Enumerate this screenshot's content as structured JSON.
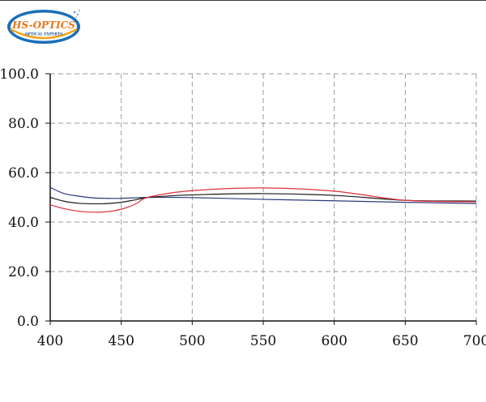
{
  "logo": {
    "brand": "HS-OPTICS",
    "tagline": "OPTICAL EXPERTS"
  },
  "chart_data": {
    "type": "line",
    "xlim": [
      400,
      700
    ],
    "ylim": [
      0,
      100
    ],
    "x_ticks": [
      "400",
      "450",
      "500",
      "550",
      "600",
      "650",
      "700"
    ],
    "y_ticks": [
      "0.0",
      "20.0",
      "40.0",
      "60.0",
      "80.0",
      "100.0"
    ],
    "grid": true,
    "series": [
      {
        "color": "#2b3a7a",
        "x": [
          400,
          410,
          420,
          430,
          440,
          450,
          470,
          500,
          550,
          600,
          650,
          700
        ],
        "y": [
          54.0,
          51.5,
          50.5,
          49.8,
          49.6,
          49.6,
          50.0,
          49.9,
          49.2,
          48.6,
          48.0,
          47.5
        ]
      },
      {
        "color": "#1a1a1a",
        "x": [
          400,
          410,
          420,
          430,
          440,
          450,
          460,
          470,
          500,
          550,
          600,
          650,
          700
        ],
        "y": [
          50.0,
          48.4,
          47.6,
          47.4,
          47.5,
          48.0,
          49.0,
          50.0,
          51.0,
          51.5,
          50.8,
          48.8,
          48.5
        ]
      },
      {
        "color": "#e0303a",
        "x": [
          400,
          410,
          420,
          430,
          440,
          450,
          460,
          470,
          500,
          550,
          600,
          650,
          700
        ],
        "y": [
          47.0,
          45.4,
          44.4,
          44.0,
          44.2,
          45.2,
          47.3,
          50.2,
          52.7,
          53.8,
          52.5,
          48.8,
          48.2
        ]
      }
    ]
  }
}
